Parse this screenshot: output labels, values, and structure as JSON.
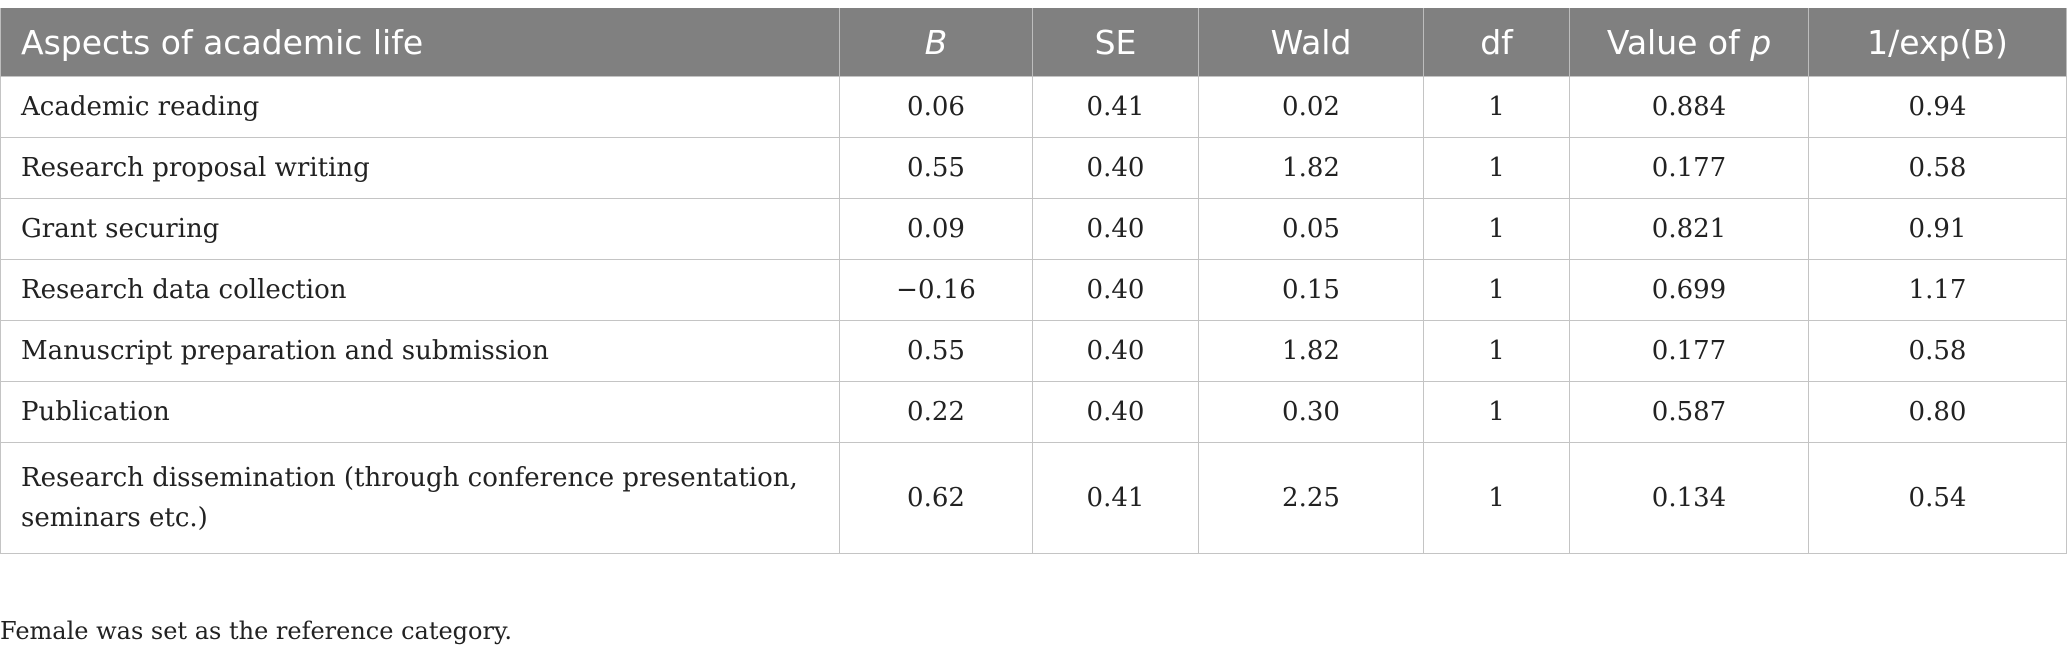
{
  "table": {
    "headers": {
      "aspects": "Aspects of academic life",
      "b": "B",
      "se": "SE",
      "wald": "Wald",
      "df": "df",
      "p_prefix": "Value of ",
      "p_var": "p",
      "exp": "1/exp(B)"
    },
    "rows": [
      {
        "aspect": "Academic reading",
        "b": "0.06",
        "se": "0.41",
        "wald": "0.02",
        "df": "1",
        "p": "0.884",
        "exp": "0.94"
      },
      {
        "aspect": "Research proposal writing",
        "b": "0.55",
        "se": "0.40",
        "wald": "1.82",
        "df": "1",
        "p": "0.177",
        "exp": "0.58"
      },
      {
        "aspect": "Grant securing",
        "b": "0.09",
        "se": "0.40",
        "wald": "0.05",
        "df": "1",
        "p": "0.821",
        "exp": "0.91"
      },
      {
        "aspect": "Research data collection",
        "b": "−0.16",
        "se": "0.40",
        "wald": "0.15",
        "df": "1",
        "p": "0.699",
        "exp": "1.17"
      },
      {
        "aspect": "Manuscript preparation and submission",
        "b": "0.55",
        "se": "0.40",
        "wald": "1.82",
        "df": "1",
        "p": "0.177",
        "exp": "0.58"
      },
      {
        "aspect": "Publication",
        "b": "0.22",
        "se": "0.40",
        "wald": "0.30",
        "df": "1",
        "p": "0.587",
        "exp": "0.80"
      },
      {
        "aspect": "Research dissemination (through conference presentation, seminars etc.)",
        "b": "0.62",
        "se": "0.41",
        "wald": "2.25",
        "df": "1",
        "p": "0.134",
        "exp": "0.54"
      }
    ]
  },
  "footnote": "Female was set as the reference category."
}
